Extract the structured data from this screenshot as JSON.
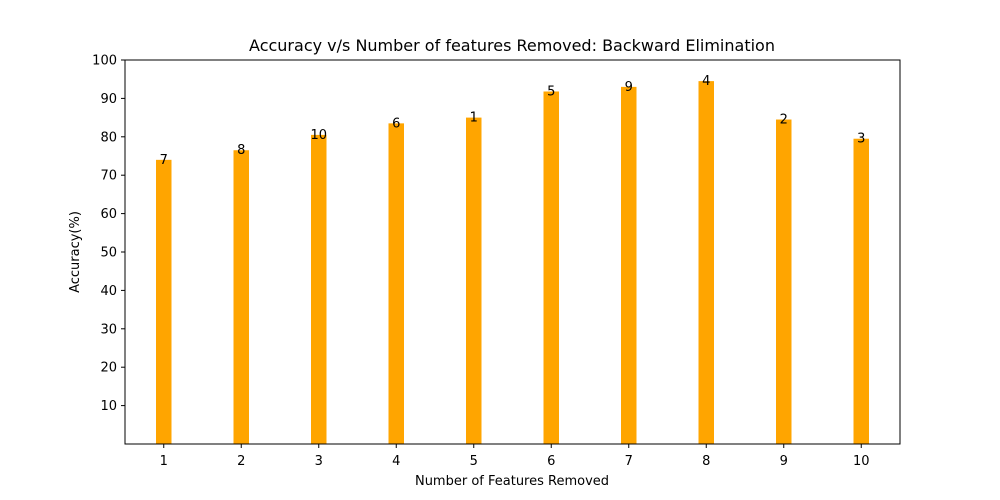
{
  "chart_data": {
    "type": "bar",
    "title": "Accuracy v/s Number of features Removed: Backward Elimination",
    "xlabel": "Number of Features Removed",
    "ylabel": "Accuracy(%)",
    "categories": [
      "1",
      "2",
      "3",
      "4",
      "5",
      "6",
      "7",
      "8",
      "9",
      "10"
    ],
    "values": [
      74,
      76.5,
      80.5,
      83.5,
      85,
      91.8,
      93,
      94.5,
      84.5,
      79.5
    ],
    "bar_labels": [
      "7",
      "8",
      "10",
      "6",
      "1",
      "5",
      "9",
      "4",
      "2",
      "3"
    ],
    "ylim": [
      0,
      100
    ],
    "yticks": [
      10,
      20,
      30,
      40,
      50,
      60,
      70,
      80,
      90,
      100
    ],
    "grid": false,
    "bar_color": "#ffa500"
  }
}
